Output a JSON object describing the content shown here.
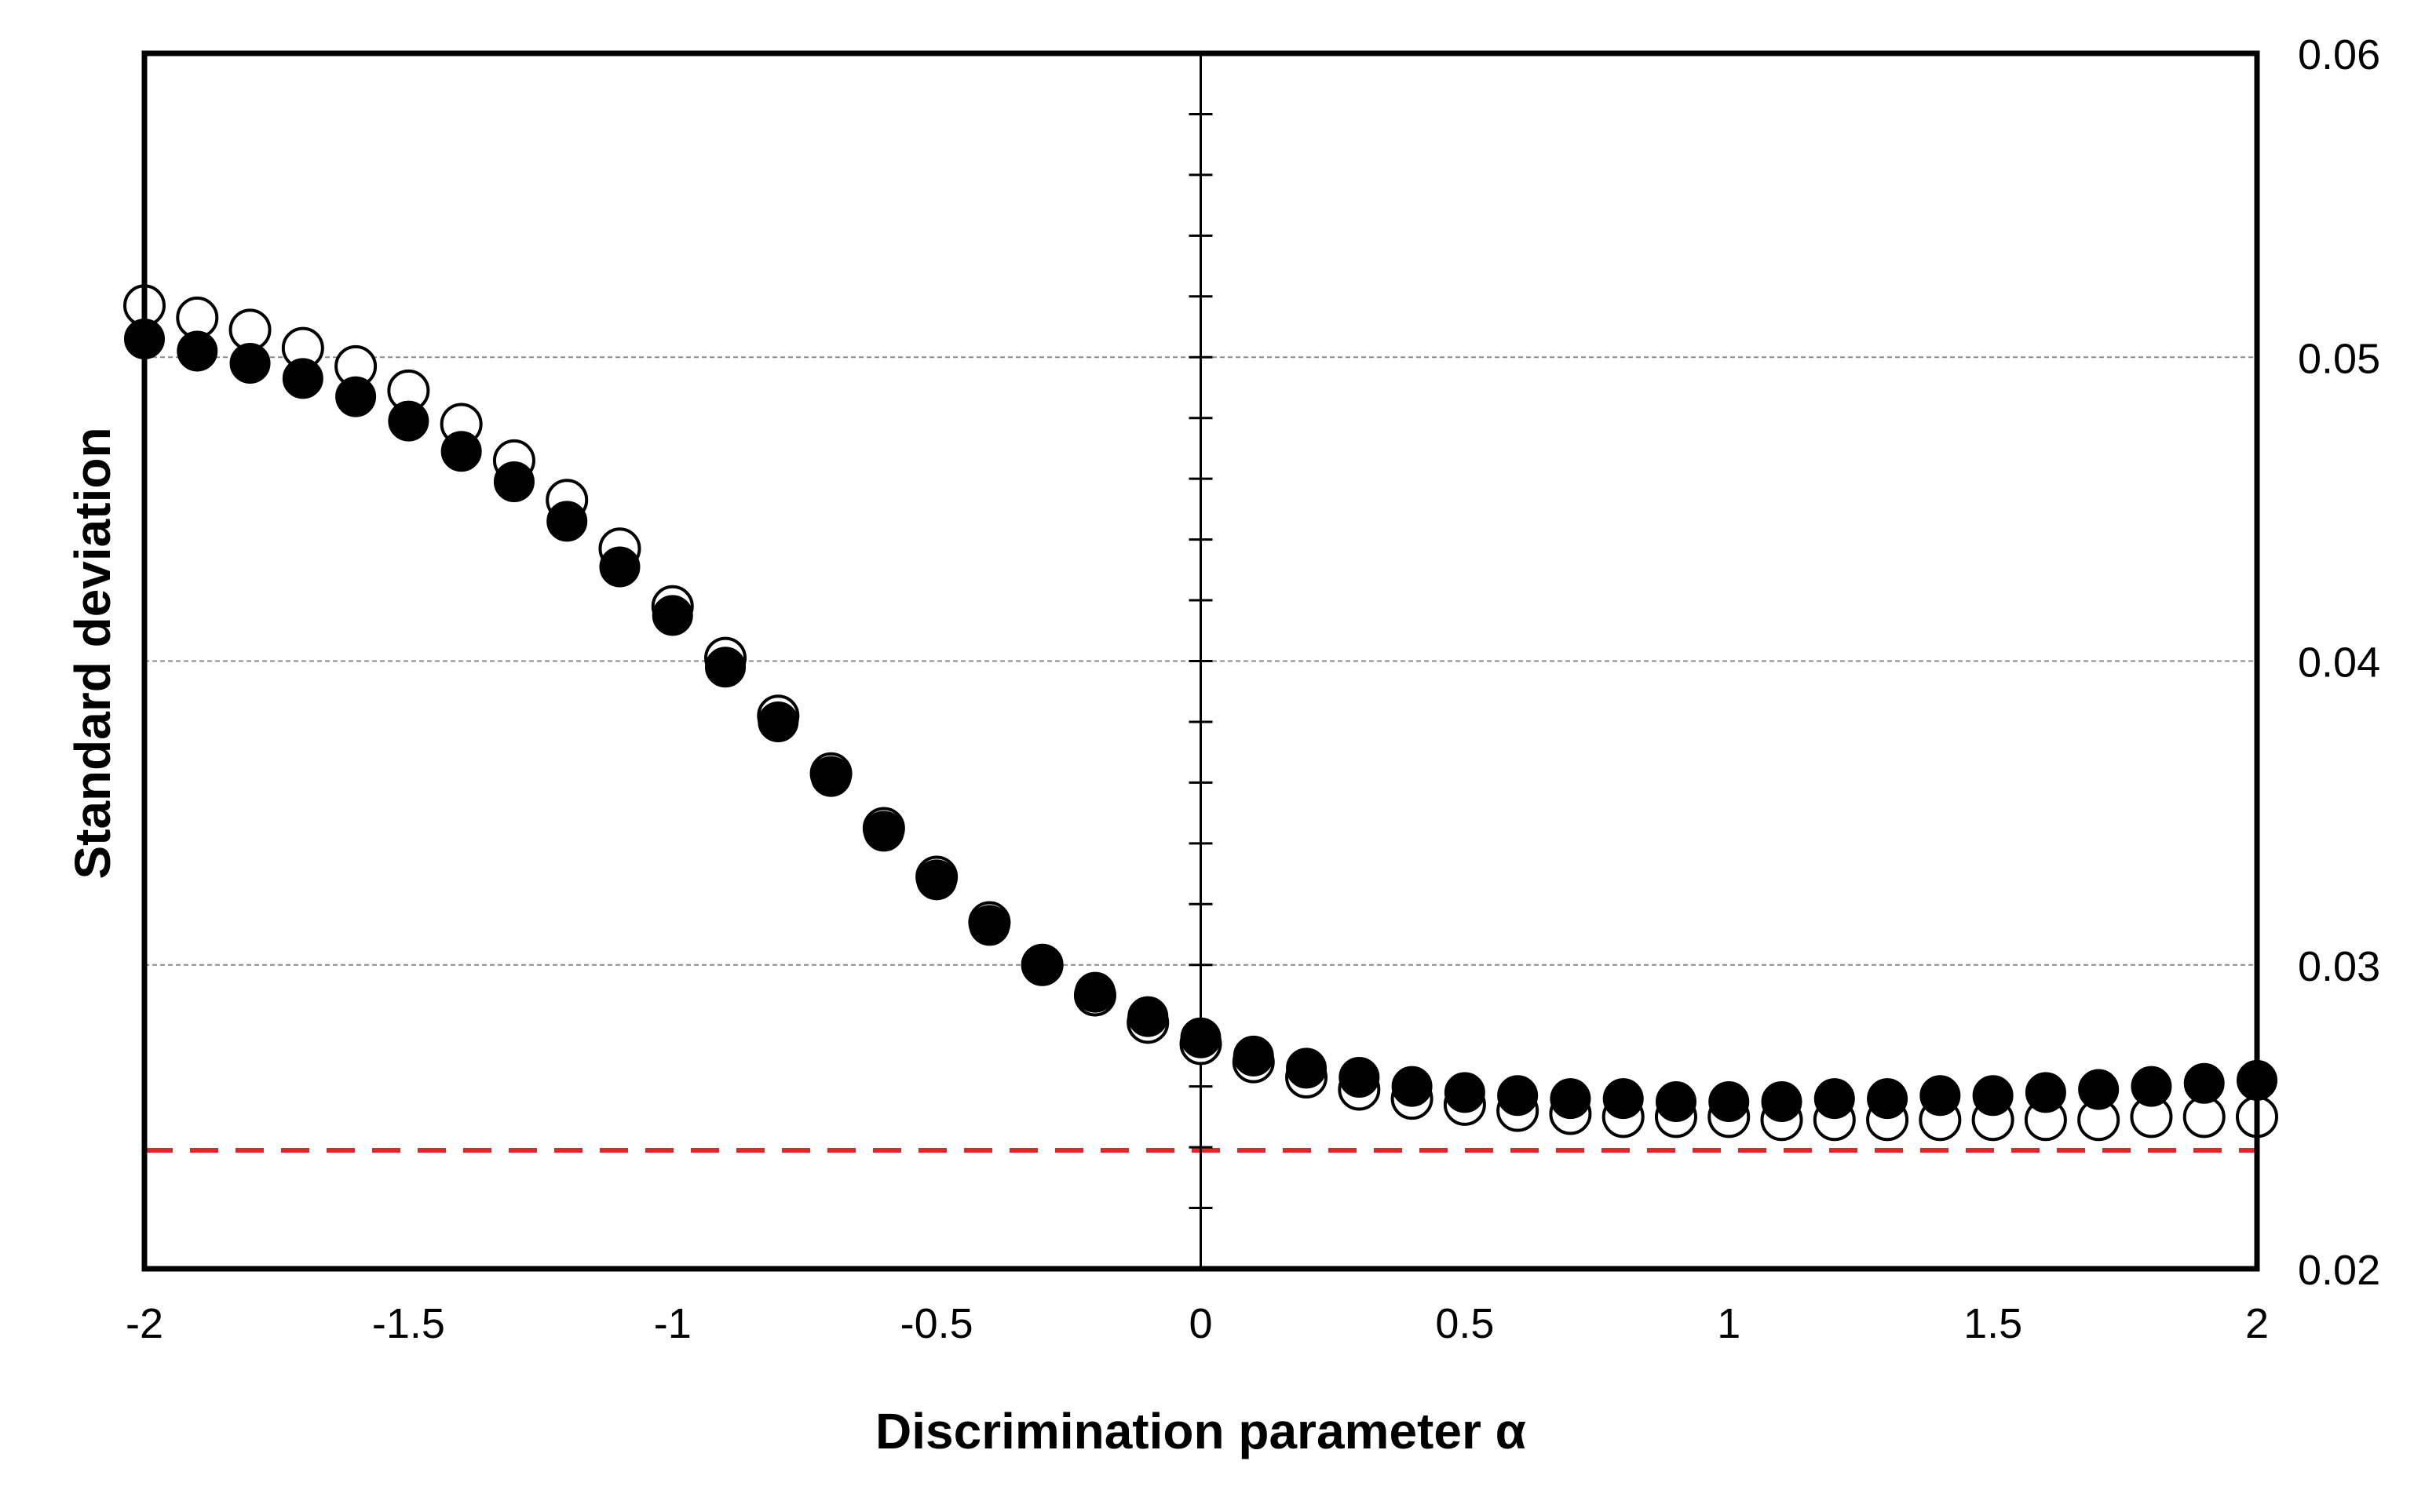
{
  "chart_data": {
    "type": "scatter",
    "title": "",
    "xlabel": "Discrimination parameter α",
    "ylabel": "Standard deviation",
    "xlim": [
      -2,
      2
    ],
    "ylim": [
      0.02,
      0.06
    ],
    "x_ticks": [
      -2,
      -1.5,
      -1,
      -0.5,
      0,
      0.5,
      1,
      1.5,
      2
    ],
    "x_tick_labels": [
      "-2",
      "-1.5",
      "-1",
      "-0.5",
      "0",
      "0.5",
      "1",
      "1.5",
      "2"
    ],
    "y_ticks": [
      0.02,
      0.03,
      0.04,
      0.05,
      0.06
    ],
    "y_tick_labels": [
      "0.02",
      "0.03",
      "0.04",
      "0.05",
      "0.06"
    ],
    "y_axis_side": "right",
    "grid": "horizontal dashed at major y ticks",
    "x": [
      -2,
      -1.9,
      -1.8,
      -1.7,
      -1.6,
      -1.5,
      -1.4,
      -1.3,
      -1.2,
      -1.1,
      -1,
      -0.9,
      -0.8,
      -0.7,
      -0.6,
      -0.5,
      -0.4,
      -0.3,
      -0.2,
      -0.1,
      0,
      0.1,
      0.2,
      0.3,
      0.4,
      0.5,
      0.6,
      0.7,
      0.8,
      0.9,
      1,
      1.1,
      1.2,
      1.3,
      1.4,
      1.5,
      1.6,
      1.7,
      1.8,
      1.9,
      2
    ],
    "series": [
      {
        "name": "open circles",
        "marker": "open-circle",
        "color": "#000000",
        "values": [
          0.0517,
          0.0513,
          0.0509,
          0.0503,
          0.0497,
          0.0489,
          0.0478,
          0.0466,
          0.0453,
          0.0437,
          0.0418,
          0.0401,
          0.0382,
          0.0363,
          0.0345,
          0.0329,
          0.0314,
          0.03,
          0.029,
          0.0281,
          0.0274,
          0.0268,
          0.0263,
          0.0259,
          0.0256,
          0.0254,
          0.0252,
          0.0251,
          0.025,
          0.025,
          0.025,
          0.0249,
          0.0249,
          0.0249,
          0.0249,
          0.0249,
          0.0249,
          0.0249,
          0.025,
          0.025,
          0.025
        ]
      },
      {
        "name": "filled circles",
        "marker": "filled-circle",
        "color": "#000000",
        "values": [
          0.0506,
          0.0502,
          0.0498,
          0.0493,
          0.0487,
          0.0479,
          0.0469,
          0.0459,
          0.0446,
          0.0431,
          0.0415,
          0.0398,
          0.038,
          0.0362,
          0.0344,
          0.0328,
          0.0313,
          0.03,
          0.0291,
          0.0283,
          0.0276,
          0.027,
          0.0266,
          0.0263,
          0.026,
          0.0258,
          0.0257,
          0.0256,
          0.0256,
          0.0255,
          0.0255,
          0.0255,
          0.0256,
          0.0256,
          0.0257,
          0.0257,
          0.0258,
          0.0259,
          0.026,
          0.0261,
          0.0262
        ]
      }
    ],
    "reference_line": {
      "y": 0.0239,
      "style": "dashed",
      "color": "#e8242a"
    }
  }
}
